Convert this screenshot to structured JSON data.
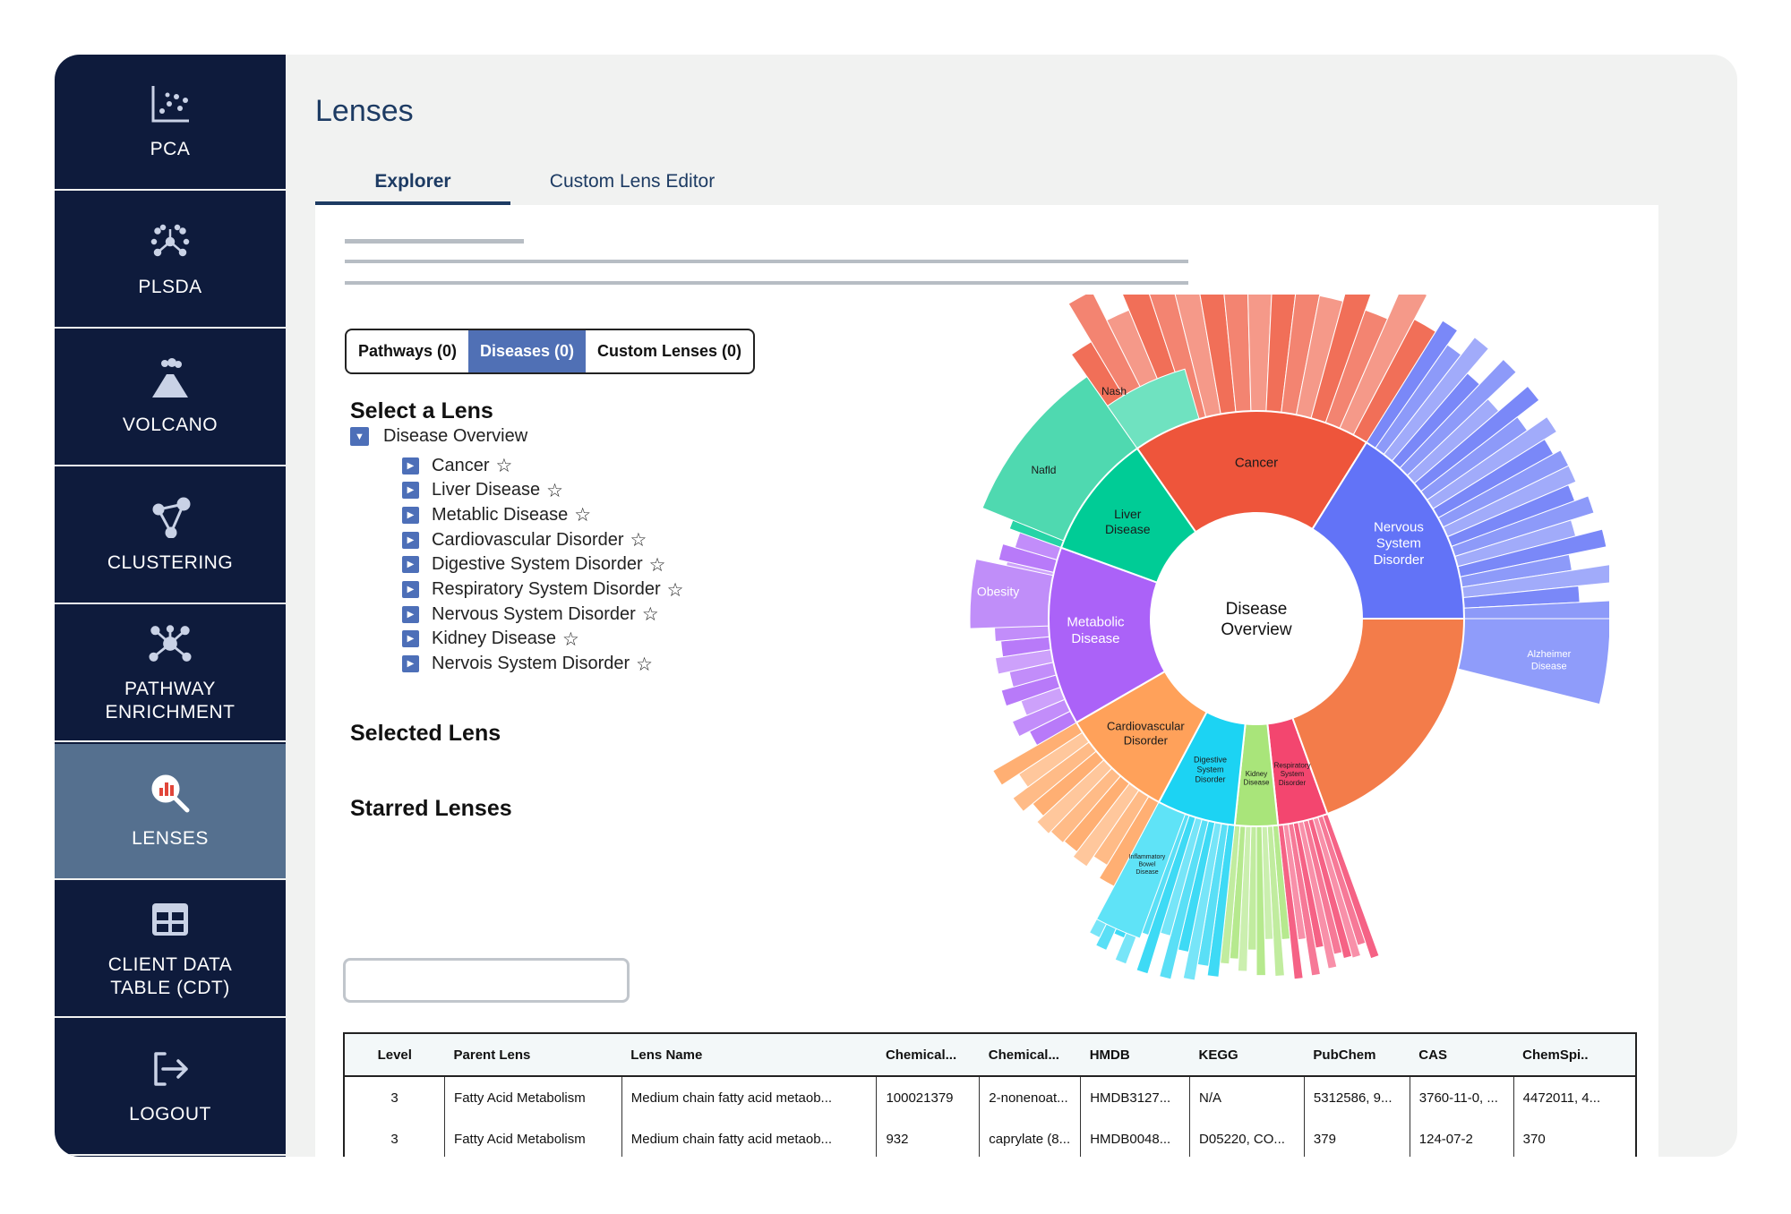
{
  "sidebar": {
    "items": [
      {
        "label": "PCA",
        "icon": "scatter-plot-icon"
      },
      {
        "label": "PLSDA",
        "icon": "plsda-icon"
      },
      {
        "label": "VOLCANO",
        "icon": "volcano-icon"
      },
      {
        "label": "CLUSTERING",
        "icon": "cluster-icon"
      },
      {
        "label": "PATHWAY\nENRICHMENT",
        "icon": "network-icon"
      },
      {
        "label": "LENSES",
        "icon": "lens-search-icon",
        "active": true
      },
      {
        "label": "CLIENT DATA\nTABLE (CDT)",
        "icon": "table-icon"
      },
      {
        "label": "LOGOUT",
        "icon": "logout-icon"
      }
    ]
  },
  "header": {
    "title": "Lenses"
  },
  "tabs": [
    {
      "label": "Explorer",
      "active": true
    },
    {
      "label": "Custom Lens Editor",
      "active": false
    }
  ],
  "segments": [
    {
      "label": "Pathways (0)",
      "active": false
    },
    {
      "label": "Diseases (0)",
      "active": true
    },
    {
      "label": "Custom Lenses (0)",
      "active": false
    }
  ],
  "headings": {
    "select_lens": "Select a Lens",
    "selected_lens": "Selected Lens",
    "starred_lenses": "Starred Lenses"
  },
  "tree": {
    "root": "Disease Overview",
    "items": [
      "Cancer",
      "Liver Disease",
      "Metablic Disease",
      "Cardiovascular Disorder",
      "Digestive System Disorder",
      "Respiratory System Disorder",
      "Nervous System Disorder",
      "Kidney Disease",
      "Nervois System Disorder"
    ],
    "star": "☆"
  },
  "sunburst": {
    "center": [
      "Disease",
      "Overview"
    ],
    "categories": [
      {
        "name": "Cancer",
        "lines": [
          "Cancer"
        ],
        "color": "#ee553b",
        "label_color": "#1a1a1a"
      },
      {
        "name": "Nervous System Disorder",
        "lines": [
          "Nervous",
          "System",
          "Disorder"
        ],
        "color": "#6273f7",
        "label_color": "#ffffff"
      },
      {
        "name": "Respiratory System Disorder",
        "lines": [
          "Respiratory",
          "System",
          "Disorder"
        ],
        "color": "#f3466f",
        "label_color": "#1a1a1a"
      },
      {
        "name": "Kidney Disease",
        "lines": [
          "Kidney",
          "Disease"
        ],
        "color": "#a9e57a",
        "label_color": "#1a1a1a"
      },
      {
        "name": "Digestive System Disorder",
        "lines": [
          "Digestive",
          "System",
          "Disorder"
        ],
        "color": "#1cd3f3",
        "label_color": "#1a1a1a"
      },
      {
        "name": "Cardiovascular Disorder",
        "lines": [
          "Cardiovascular",
          "Disorder"
        ],
        "color": "#ffa15a",
        "label_color": "#1a1a1a"
      },
      {
        "name": "Metabolic Disease",
        "lines": [
          "Metabolic",
          "Disease"
        ],
        "color": "#ab62f8",
        "label_color": "#ffffff"
      },
      {
        "name": "Liver Disease",
        "lines": [
          "Liver",
          "Disease"
        ],
        "color": "#00cc96",
        "label_color": "#1a1a1a"
      }
    ],
    "subcategories": [
      {
        "lines": [
          "Nash"
        ]
      },
      {
        "lines": [
          "Nafld"
        ]
      },
      {
        "lines": [
          "Obesity"
        ]
      },
      {
        "lines": [
          "Alzheimer",
          "Disease"
        ]
      },
      {
        "lines": [
          "Inflammatory",
          "Bowel",
          "Disease"
        ]
      }
    ]
  },
  "table": {
    "columns": [
      "Level",
      "Parent Lens",
      "Lens Name",
      "Chemical...",
      "Chemical...",
      "HMDB",
      "KEGG",
      "PubChem",
      "CAS",
      "ChemSpi.."
    ],
    "rows": [
      [
        "3",
        "Fatty Acid Metabolism",
        "Medium chain fatty acid metaob...",
        "100021379",
        "2-nonenoat...",
        "HMDB3127...",
        "N/A",
        "5312586, 9...",
        "3760-11-0, ...",
        "4472011, 4..."
      ],
      [
        "3",
        "Fatty Acid Metabolism",
        "Medium chain fatty acid metaob...",
        "932",
        "caprylate (8...",
        "HMDB0048...",
        "D05220, CO...",
        "379",
        "124-07-2",
        "370"
      ]
    ]
  }
}
